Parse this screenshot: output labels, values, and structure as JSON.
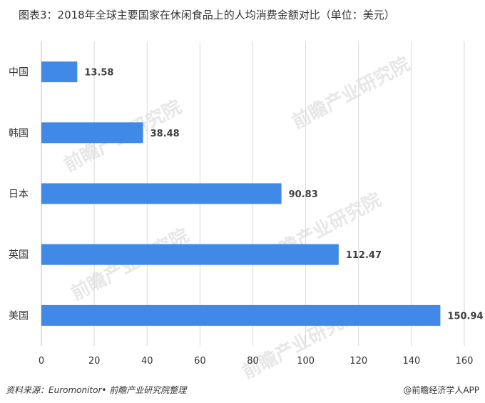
{
  "title": "图表3：2018年全球主要国家在休闲食品上的人均消费金额对比（单位：美元）",
  "source": "资料来源：Euromonitor• 前瞻产业研究院整理",
  "credit": "@前瞻经济学人APP",
  "watermark": "前瞻产业研究院",
  "colors": {
    "bar": "#4089e6",
    "grid": "#d9d9d9",
    "text": "#333333"
  },
  "chart_data": {
    "type": "bar",
    "orientation": "horizontal",
    "categories": [
      "中国",
      "韩国",
      "日本",
      "英国",
      "美国"
    ],
    "values": [
      13.58,
      38.48,
      90.83,
      112.47,
      150.94
    ],
    "value_labels": [
      "13.58",
      "38.48",
      "90.83",
      "112.47",
      "150.94"
    ],
    "xlim": [
      0,
      160
    ],
    "xticks": [
      "0",
      "20",
      "40",
      "60",
      "80",
      "100",
      "120",
      "140",
      "160"
    ],
    "grid": true
  }
}
